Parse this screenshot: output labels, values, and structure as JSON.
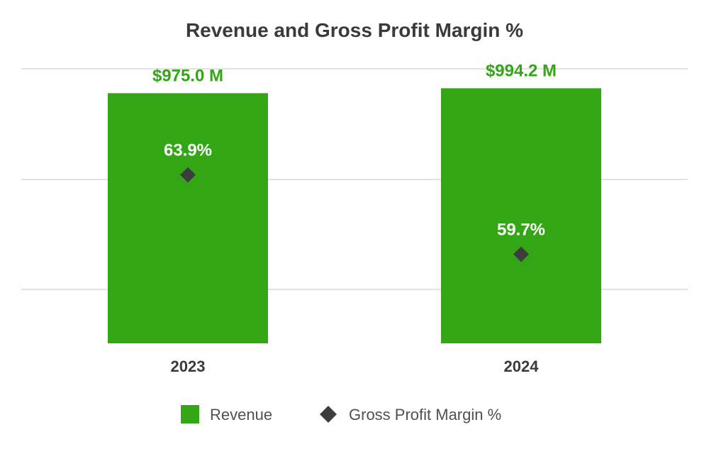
{
  "chart_data": {
    "type": "bar",
    "title": "Revenue and Gross Profit Margin %",
    "categories": [
      "2023",
      "2024"
    ],
    "series": [
      {
        "name": "Revenue",
        "kind": "bar",
        "values": [
          975.0,
          994.2
        ],
        "labels": [
          "$975.0 M",
          "$994.2 M"
        ],
        "color": "#33a616",
        "axis": "left",
        "ylim": [
          0,
          1070
        ]
      },
      {
        "name": "Gross Profit Margin %",
        "kind": "marker",
        "marker": "diamond",
        "values": [
          63.9,
          59.7
        ],
        "labels": [
          "63.9%",
          "59.7%"
        ],
        "color": "#3d3d3d",
        "axis": "right",
        "ylim": [
          55,
          69.5
        ]
      }
    ],
    "xlabel": "",
    "ylabel": "",
    "grid": true,
    "legend": "bottom",
    "colors": {
      "title": "#3a3a3a",
      "bar_label": "#33a616",
      "margin_label": "#ffffff",
      "tick_label": "#3a3a3a",
      "legend_text": "#505050",
      "grid": "#e3e3e3"
    }
  }
}
